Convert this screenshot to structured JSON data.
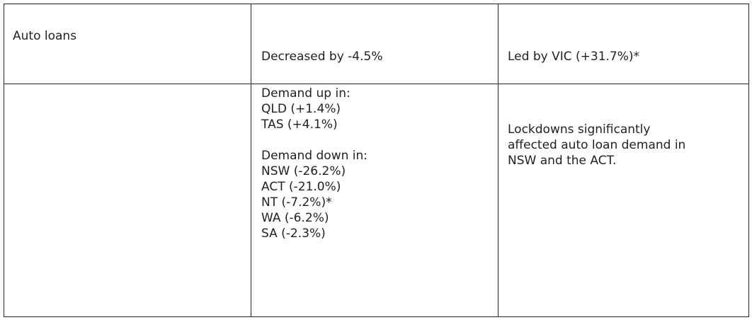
{
  "table": {
    "row1": {
      "col1": "Auto loans",
      "col2": "Decreased by -4.5%",
      "col3": "Led by VIC (+31.7%)*"
    },
    "row2": {
      "col1": "",
      "col2": {
        "up_heading": "Demand up in:",
        "up_items": [
          "QLD (+1.4%)",
          "TAS (+4.1%)"
        ],
        "down_heading": "Demand down in:",
        "down_items": [
          "NSW (-26.2%)",
          "ACT (-21.0%)",
          "NT (-7.2%)*",
          "WA (-6.2%)",
          "SA (-2.3%)"
        ]
      },
      "col3_lines": [
        "Lockdowns significantly",
        "affected auto loan demand in",
        "NSW and the ACT."
      ]
    }
  }
}
